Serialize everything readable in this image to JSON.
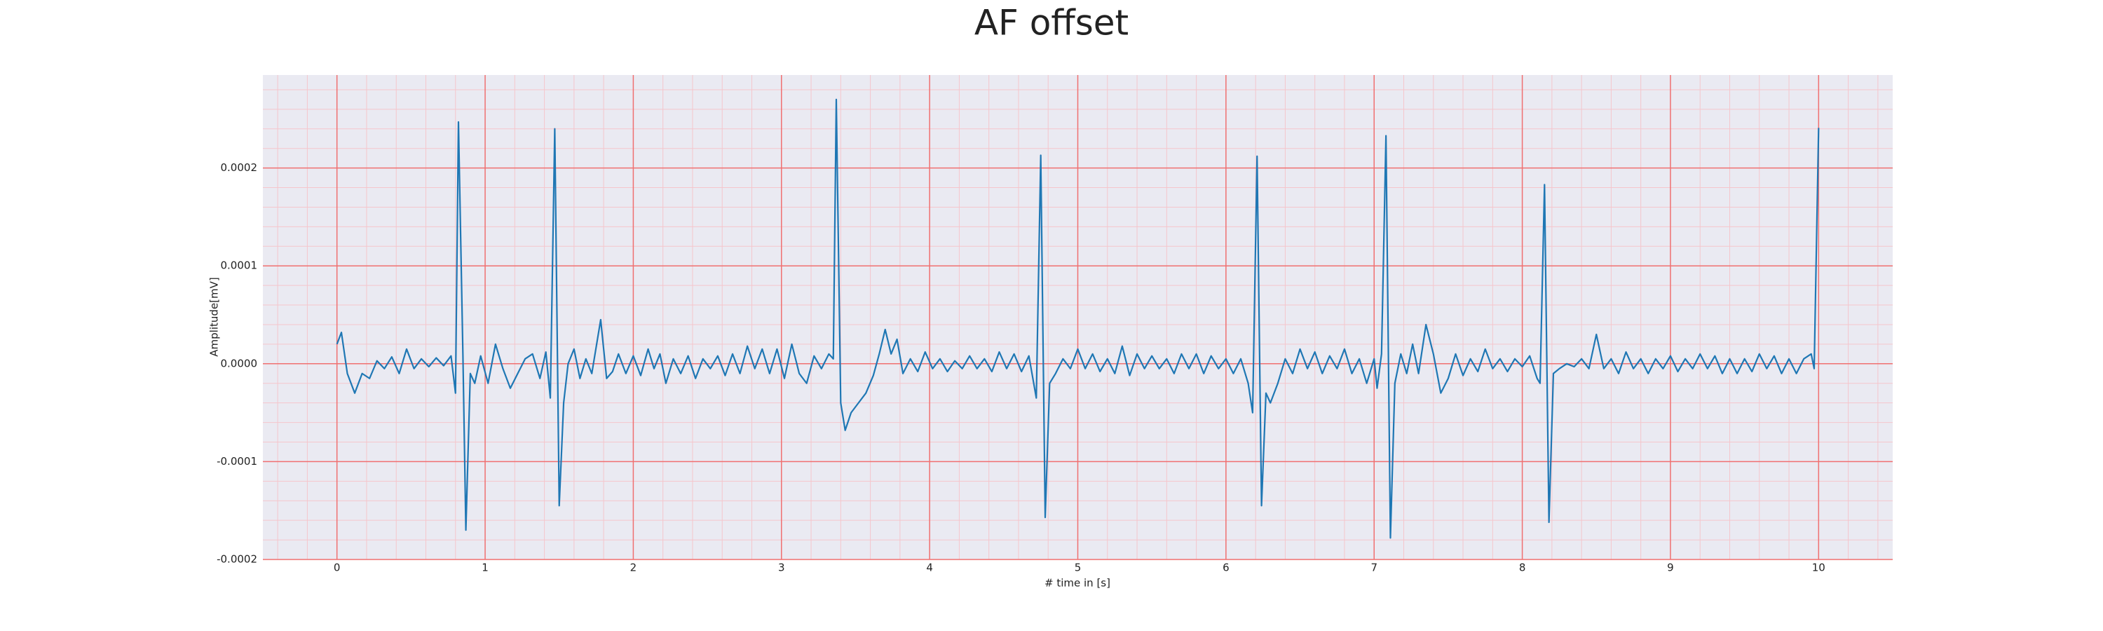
{
  "chart_data": {
    "type": "line",
    "title": "AF offset",
    "xlabel": "# time in [s]",
    "ylabel": "Amplitude[mV]",
    "xlim": [
      -0.5,
      10.5
    ],
    "ylim": [
      -0.0002,
      0.000295
    ],
    "xticks": [
      0,
      1,
      2,
      3,
      4,
      5,
      6,
      7,
      8,
      9,
      10
    ],
    "yticks": [
      -0.0002,
      -0.0001,
      {
        "value": 0,
        "label": "0.0000"
      },
      0.0001,
      0.0002
    ],
    "grid": true,
    "minor_grid": true,
    "grid_color": "#f07070",
    "minor_grid_color": "#f5c6cc",
    "background": "#eaeaf2",
    "series": [
      {
        "name": "AF offset",
        "color": "#1f77b4",
        "x": [
          0,
          0.03,
          0.07,
          0.12,
          0.17,
          0.22,
          0.27,
          0.32,
          0.37,
          0.42,
          0.47,
          0.52,
          0.57,
          0.62,
          0.67,
          0.72,
          0.77,
          0.8,
          0.82,
          0.85,
          0.87,
          0.9,
          0.93,
          0.97,
          1.02,
          1.07,
          1.12,
          1.17,
          1.22,
          1.27,
          1.32,
          1.37,
          1.41,
          1.44,
          1.47,
          1.5,
          1.53,
          1.56,
          1.6,
          1.64,
          1.68,
          1.72,
          1.78,
          1.82,
          1.86,
          1.9,
          1.95,
          2.0,
          2.05,
          2.1,
          2.14,
          2.18,
          2.22,
          2.27,
          2.32,
          2.37,
          2.42,
          2.47,
          2.52,
          2.57,
          2.62,
          2.67,
          2.72,
          2.77,
          2.82,
          2.87,
          2.92,
          2.97,
          3.02,
          3.07,
          3.12,
          3.17,
          3.22,
          3.27,
          3.32,
          3.35,
          3.37,
          3.4,
          3.43,
          3.47,
          3.52,
          3.57,
          3.62,
          3.66,
          3.7,
          3.74,
          3.78,
          3.82,
          3.87,
          3.92,
          3.97,
          4.02,
          4.07,
          4.12,
          4.17,
          4.22,
          4.27,
          4.32,
          4.37,
          4.42,
          4.47,
          4.52,
          4.57,
          4.62,
          4.67,
          4.72,
          4.75,
          4.78,
          4.81,
          4.85,
          4.9,
          4.95,
          5.0,
          5.05,
          5.1,
          5.15,
          5.2,
          5.25,
          5.3,
          5.35,
          5.4,
          5.45,
          5.5,
          5.55,
          5.6,
          5.65,
          5.7,
          5.75,
          5.8,
          5.85,
          5.9,
          5.95,
          6.0,
          6.05,
          6.1,
          6.15,
          6.18,
          6.21,
          6.24,
          6.27,
          6.3,
          6.35,
          6.4,
          6.45,
          6.5,
          6.55,
          6.6,
          6.65,
          6.7,
          6.75,
          6.8,
          6.85,
          6.9,
          6.95,
          7.0,
          7.02,
          7.05,
          7.08,
          7.11,
          7.14,
          7.18,
          7.22,
          7.26,
          7.3,
          7.35,
          7.4,
          7.45,
          7.5,
          7.55,
          7.6,
          7.65,
          7.7,
          7.75,
          7.8,
          7.85,
          7.9,
          7.95,
          8.0,
          8.05,
          8.1,
          8.12,
          8.15,
          8.18,
          8.21,
          8.25,
          8.3,
          8.35,
          8.4,
          8.45,
          8.5,
          8.55,
          8.6,
          8.65,
          8.7,
          8.75,
          8.8,
          8.85,
          8.9,
          8.95,
          9.0,
          9.05,
          9.1,
          9.15,
          9.2,
          9.25,
          9.3,
          9.35,
          9.4,
          9.45,
          9.5,
          9.55,
          9.6,
          9.65,
          9.7,
          9.75,
          9.8,
          9.85,
          9.9,
          9.95,
          9.97,
          10.0
        ],
        "values": [
          2e-05,
          3.2e-05,
          -1e-05,
          -3e-05,
          -1e-05,
          -1.5e-05,
          3e-06,
          -5e-06,
          7e-06,
          -1e-05,
          1.5e-05,
          -5e-06,
          5e-06,
          -3e-06,
          6e-06,
          -2e-06,
          8e-06,
          -3e-05,
          0.000247,
          1e-05,
          -0.00017,
          -1e-05,
          -2e-05,
          8e-06,
          -2e-05,
          2e-05,
          -5e-06,
          -2.5e-05,
          -1e-05,
          5e-06,
          1e-05,
          -1.5e-05,
          1.2e-05,
          -3.5e-05,
          0.00024,
          -0.000145,
          -4e-05,
          0,
          1.5e-05,
          -1.5e-05,
          5e-06,
          -1e-05,
          4.5e-05,
          -1.5e-05,
          -8e-06,
          1e-05,
          -1e-05,
          8e-06,
          -1.2e-05,
          1.5e-05,
          -5e-06,
          1e-05,
          -2e-05,
          5e-06,
          -1e-05,
          8e-06,
          -1.5e-05,
          5e-06,
          -5e-06,
          8e-06,
          -1.2e-05,
          1e-05,
          -1e-05,
          1.8e-05,
          -5e-06,
          1.5e-05,
          -1e-05,
          1.5e-05,
          -1.5e-05,
          2e-05,
          -1e-05,
          -2e-05,
          8e-06,
          -5e-06,
          1e-05,
          5e-06,
          0.00027,
          -4e-05,
          -6.8e-05,
          -5e-05,
          -4e-05,
          -3e-05,
          -1.2e-05,
          1e-05,
          3.5e-05,
          1e-05,
          2.5e-05,
          -1e-05,
          5e-06,
          -8e-06,
          1.2e-05,
          -5e-06,
          5e-06,
          -8e-06,
          3e-06,
          -5e-06,
          8e-06,
          -5e-06,
          5e-06,
          -8e-06,
          1.2e-05,
          -5e-06,
          1e-05,
          -8e-06,
          8e-06,
          -3.5e-05,
          0.000213,
          -0.000157,
          -2e-05,
          -1e-05,
          5e-06,
          -5e-06,
          1.5e-05,
          -5e-06,
          1e-05,
          -8e-06,
          5e-06,
          -1e-05,
          1.8e-05,
          -1.2e-05,
          1e-05,
          -5e-06,
          8e-06,
          -5e-06,
          5e-06,
          -1e-05,
          1e-05,
          -5e-06,
          1e-05,
          -1e-05,
          8e-06,
          -5e-06,
          5e-06,
          -1e-05,
          5e-06,
          -2e-05,
          -5e-05,
          0.000212,
          -0.000145,
          -3e-05,
          -4e-05,
          -2e-05,
          5e-06,
          -1e-05,
          1.5e-05,
          -5e-06,
          1.2e-05,
          -1e-05,
          8e-06,
          -5e-06,
          1.5e-05,
          -1e-05,
          5e-06,
          -2e-05,
          5e-06,
          -2.5e-05,
          1e-05,
          0.000233,
          -0.000178,
          -2e-05,
          1e-05,
          -1e-05,
          2e-05,
          -1e-05,
          4e-05,
          1e-05,
          -3e-05,
          -1.5e-05,
          1e-05,
          -1.2e-05,
          5e-06,
          -8e-06,
          1.5e-05,
          -5e-06,
          5e-06,
          -8e-06,
          5e-06,
          -3e-06,
          8e-06,
          -1.5e-05,
          -2e-05,
          0.000183,
          -0.000162,
          -1e-05,
          -5e-06,
          0,
          -3e-06,
          5e-06,
          -5e-06,
          3e-05,
          -5e-06,
          5e-06,
          -1e-05,
          1.2e-05,
          -5e-06,
          5e-06,
          -1e-05,
          5e-06,
          -5e-06,
          8e-06,
          -8e-06,
          5e-06,
          -5e-06,
          1e-05,
          -5e-06,
          8e-06,
          -1e-05,
          5e-06,
          -1e-05,
          5e-06,
          -8e-06,
          1e-05,
          -5e-06,
          8e-06,
          -1e-05,
          5e-06,
          -1e-05,
          5e-06,
          1e-05,
          -5e-06,
          0.000241
        ]
      }
    ]
  }
}
